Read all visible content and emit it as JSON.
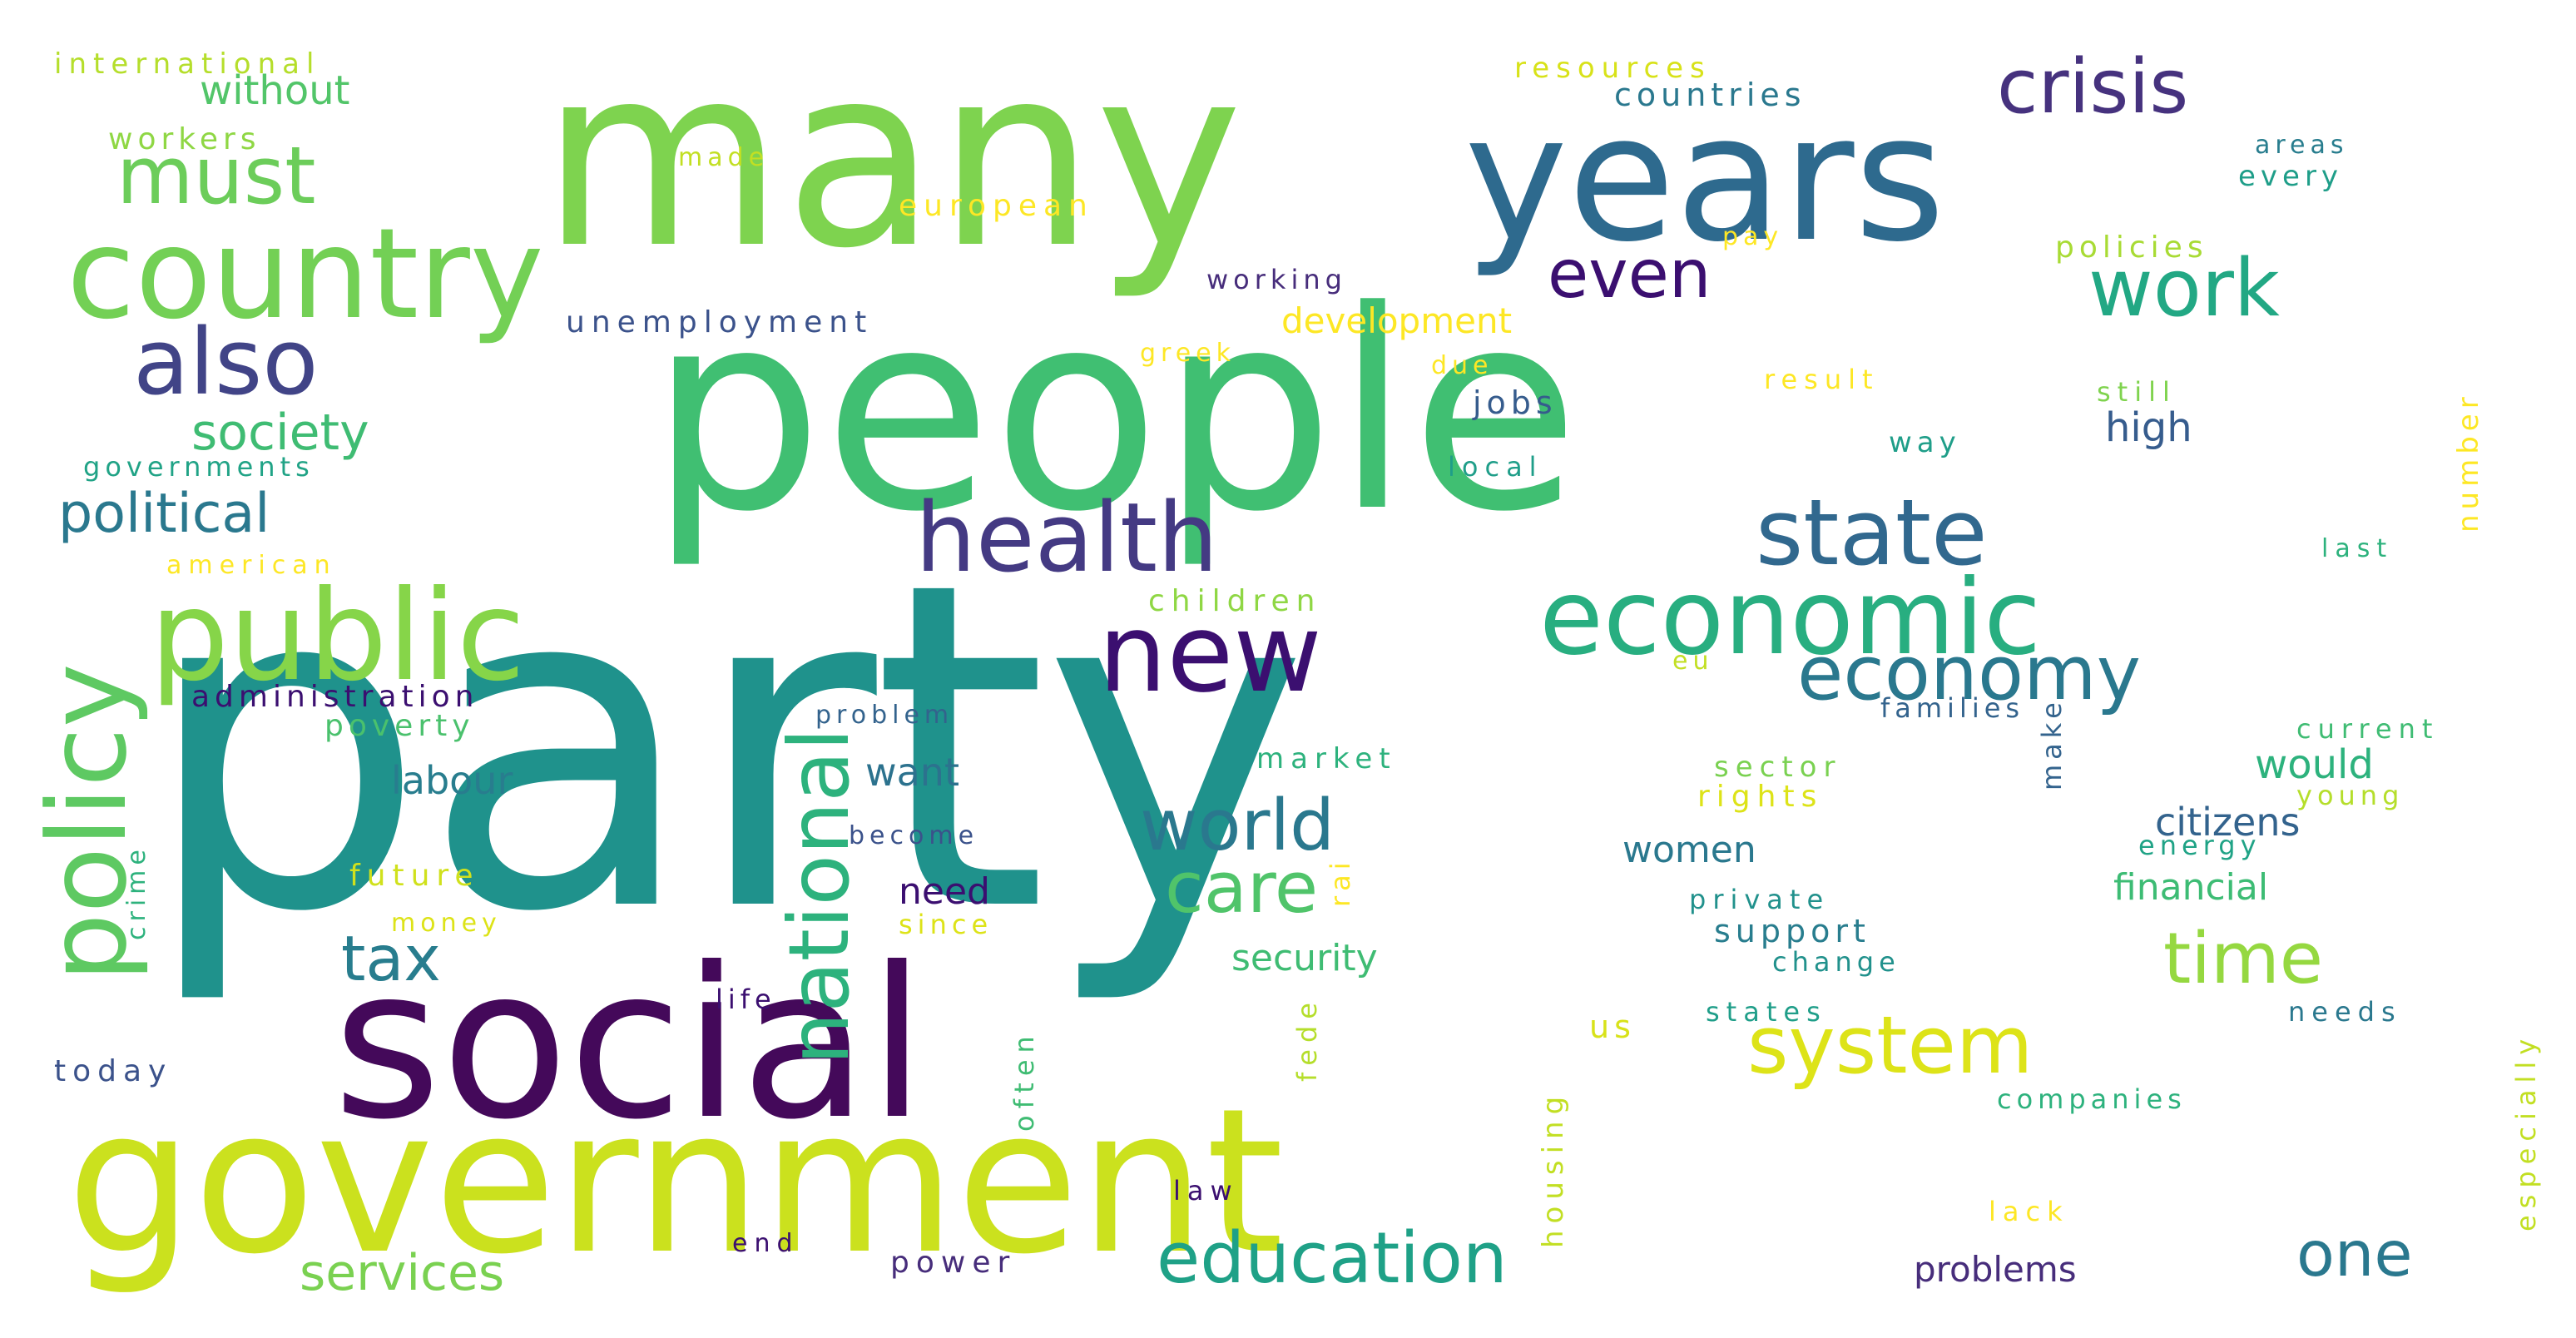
{
  "words": {
    "party": "party",
    "people": "people",
    "many": "many",
    "social": "social",
    "government": "government",
    "years": "years",
    "country": "country",
    "public": "public",
    "economic": "economic",
    "health": "health",
    "new": "new",
    "state": "state",
    "also": "also",
    "must": "must",
    "crisis": "crisis",
    "work": "work",
    "policy": "policy",
    "national": "national",
    "economy": "economy",
    "world": "world",
    "education": "education",
    "system": "system",
    "time": "time",
    "care": "care",
    "even": "even",
    "political": "political",
    "tax": "tax",
    "society": "society",
    "services": "services",
    "one": "one",
    "without": "without",
    "international": "international",
    "workers": "workers",
    "made": "made",
    "resources": "resources",
    "countries": "countries",
    "areas": "areas",
    "every": "every",
    "european": "european",
    "pay": "pay",
    "policies": "policies",
    "working": "working",
    "unemployment": "unemployment",
    "development": "development",
    "greek": "greek",
    "due": "due",
    "result": "result",
    "still": "still",
    "jobs": "jobs",
    "governments": "governments",
    "local": "local",
    "way": "way",
    "high": "high",
    "number": "number",
    "american": "american",
    "last": "last",
    "children": "children",
    "administration": "administration",
    "make": "make",
    "eu": "eu",
    "poverty": "poverty",
    "problem": "problem",
    "families": "families",
    "current": "current",
    "labour": "labour",
    "want": "want",
    "market": "market",
    "sector": "sector",
    "would": "would",
    "rights": "rights",
    "young": "young",
    "crime": "crime",
    "become": "become",
    "citizens": "citizens",
    "future": "future",
    "women": "women",
    "energy": "energy",
    "need": "need",
    "rai": "rai",
    "private": "private",
    "financial": "financial",
    "money": "money",
    "since": "since",
    "support": "support",
    "security": "security",
    "change": "change",
    "especially": "especially",
    "fede": "fede",
    "life": "life",
    "often": "often",
    "states": "states",
    "needs": "needs",
    "us": "us",
    "today": "today",
    "housing": "housing",
    "companies": "companies",
    "law": "law",
    "lack": "lack",
    "end": "end",
    "power": "power",
    "problems": "problems"
  },
  "colors": {
    "c1": "#3b0f4f",
    "c2": "#46327e",
    "c3": "#365c8d",
    "c4": "#277f8e",
    "c5": "#1fa187",
    "c6": "#4ac16d",
    "c7": "#a0da39",
    "c8": "#dce319",
    "c9": "#fde725"
  }
}
